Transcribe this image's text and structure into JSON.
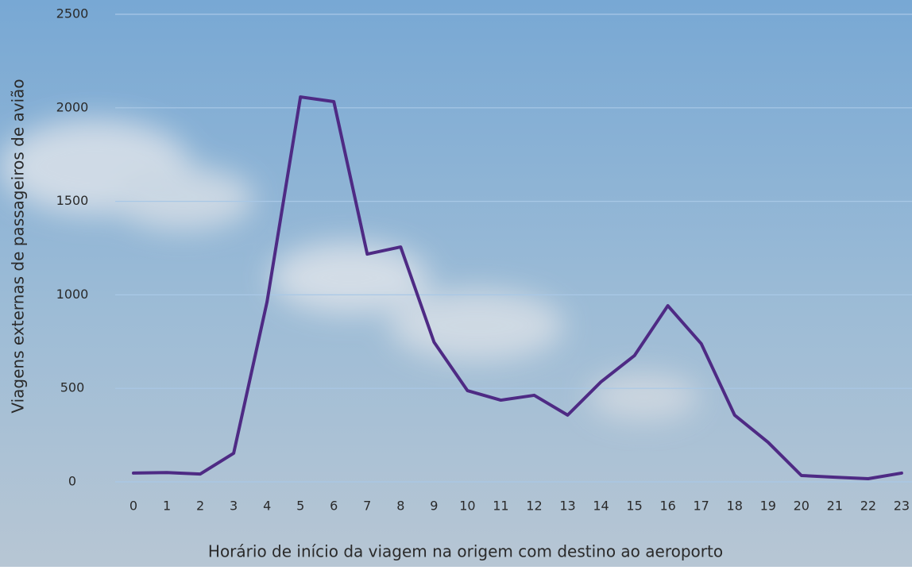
{
  "chart_data": {
    "type": "line",
    "x_label": "Horário de início da viagem na origem com destino ao aeroporto",
    "y_label": "Viagens externas de passageiros de avião",
    "categories": [
      "0",
      "1",
      "2",
      "3",
      "4",
      "5",
      "6",
      "7",
      "8",
      "9",
      "10",
      "11",
      "12",
      "13",
      "14",
      "15",
      "16",
      "17",
      "18",
      "19",
      "20",
      "21",
      "22",
      "23"
    ],
    "series": [
      {
        "name": "Viagens",
        "color": "#4e2a84",
        "values": [
          47,
          50,
          42,
          153,
          963,
          2058,
          2033,
          1218,
          1256,
          747,
          488,
          437,
          463,
          357,
          535,
          675,
          942,
          739,
          357,
          212,
          34,
          25,
          17,
          47
        ]
      }
    ],
    "ylim": [
      0,
      2500
    ],
    "yticks": [
      0,
      500,
      1000,
      1500,
      2000,
      2500
    ],
    "grid": true
  }
}
